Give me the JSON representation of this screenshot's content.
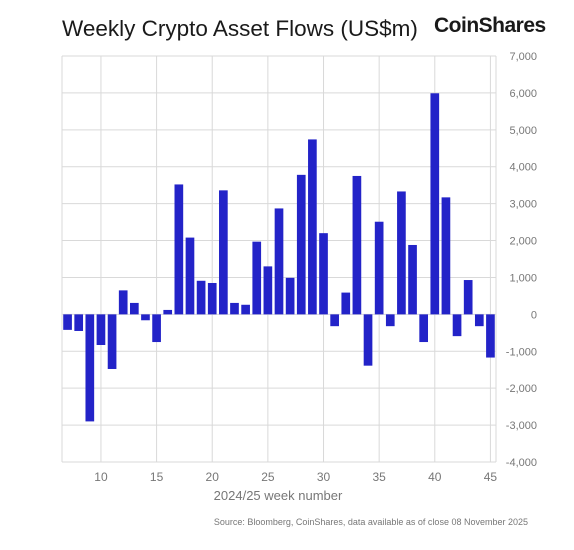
{
  "title": "Weekly Crypto Asset Flows (US$m)",
  "brand": "CoinShares",
  "source": "Source: Bloomberg, CoinShares, data available as of close 08 November 2025",
  "colors": {
    "bar": "#2323c8",
    "grid": "#d9d9d9",
    "axis_text": "#777777"
  },
  "chart_data": {
    "type": "bar",
    "xlabel": "2024/25 week number",
    "ylabel": "",
    "ylim": [
      -4000,
      7000
    ],
    "yticks": [
      7000,
      6000,
      5000,
      4000,
      3000,
      2000,
      1000,
      0,
      -1000,
      -2000,
      -3000,
      -4000
    ],
    "ytick_labels": [
      "7,000",
      "6,000",
      "5,000",
      "4,000",
      "3,000",
      "2,000",
      "1,000",
      "0",
      "-1,000",
      "-2,000",
      "-3,000",
      "-4,000"
    ],
    "xlim": [
      6.5,
      45.5
    ],
    "xticks": [
      10,
      15,
      20,
      25,
      30,
      35,
      40,
      45
    ],
    "xtick_labels": [
      "10",
      "15",
      "20",
      "25",
      "30",
      "35",
      "40",
      "45"
    ],
    "grid": true,
    "x": [
      7,
      8,
      9,
      10,
      11,
      12,
      13,
      14,
      15,
      16,
      17,
      18,
      19,
      20,
      21,
      22,
      23,
      24,
      25,
      26,
      27,
      28,
      29,
      30,
      31,
      32,
      33,
      34,
      35,
      36,
      37,
      38,
      39,
      40,
      41,
      42,
      43,
      44,
      45
    ],
    "values": [
      -420,
      -450,
      -2900,
      -830,
      -1480,
      650,
      310,
      -160,
      -750,
      120,
      3520,
      2080,
      910,
      850,
      3360,
      310,
      260,
      1970,
      1300,
      2870,
      990,
      3780,
      4740,
      2200,
      -320,
      590,
      3750,
      -1390,
      2510,
      -320,
      3330,
      1880,
      -750,
      5990,
      3170,
      -590,
      930,
      -320,
      -1170
    ]
  }
}
